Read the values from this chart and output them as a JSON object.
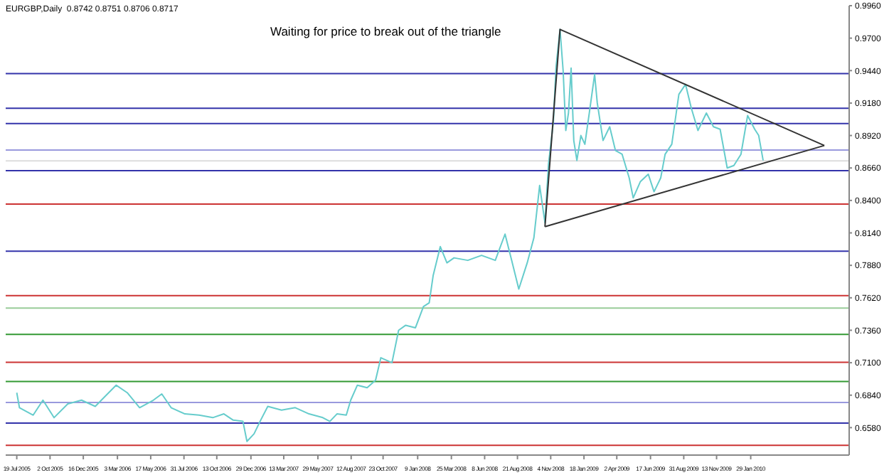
{
  "chart_data": {
    "type": "line",
    "title": "EURGBP,Daily  0.8742 0.8751 0.8706 0.8717",
    "annotations": [
      "Waiting for price to break out of the triangle"
    ],
    "series": [
      {
        "color": "#66cccc",
        "x": [
          "2005-07-19",
          "2005-07-25",
          "2005-08-25",
          "2005-09-16",
          "2005-10-11",
          "2005-11-11",
          "2005-12-12",
          "2006-01-12",
          "2006-02-03",
          "2006-02-28",
          "2006-03-25",
          "2006-04-22",
          "2006-05-23",
          "2006-06-11",
          "2006-07-02",
          "2006-08-02",
          "2006-09-03",
          "2006-10-04",
          "2006-10-29",
          "2006-11-19",
          "2006-12-11",
          "2006-12-20",
          "2007-01-05",
          "2007-01-20",
          "2007-02-05",
          "2007-03-08",
          "2007-04-08",
          "2007-05-09",
          "2007-06-09",
          "2007-06-25",
          "2007-07-11",
          "2007-08-01",
          "2007-08-11",
          "2007-08-26",
          "2007-09-17",
          "2007-10-06",
          "2007-10-18",
          "2007-11-12",
          "2007-11-27",
          "2007-12-13",
          "2008-01-04",
          "2008-01-22",
          "2008-02-04",
          "2008-02-13",
          "2008-02-29",
          "2008-03-15",
          "2008-03-31",
          "2008-05-01",
          "2008-06-01",
          "2008-07-02",
          "2008-07-24",
          "2008-08-08",
          "2008-08-24",
          "2008-09-12",
          "2008-09-27",
          "2008-10-10",
          "2008-10-22",
          "2008-10-30",
          "2008-11-10",
          "2008-11-16",
          "2008-11-25",
          "2008-12-02",
          "2008-12-08",
          "2008-12-14",
          "2008-12-20",
          "2008-12-26",
          "2009-01-02",
          "2009-01-11",
          "2009-01-20",
          "2009-01-30",
          "2009-02-11",
          "2009-02-17",
          "2009-03-02",
          "2009-03-17",
          "2009-03-30",
          "2009-04-14",
          "2009-04-30",
          "2009-05-09",
          "2009-05-25",
          "2009-06-12",
          "2009-06-25",
          "2009-07-10",
          "2009-07-20",
          "2009-08-04",
          "2009-08-20",
          "2009-09-04",
          "2009-09-17",
          "2009-10-02",
          "2009-10-21",
          "2009-11-06",
          "2009-11-21",
          "2009-12-07",
          "2009-12-22",
          "2010-01-07",
          "2010-01-22",
          "2010-02-07",
          "2010-02-16",
          "2010-02-26"
        ],
        "values": [
          0.686,
          0.674,
          0.668,
          0.68,
          0.666,
          0.677,
          0.68,
          0.675,
          0.683,
          0.692,
          0.686,
          0.674,
          0.68,
          0.685,
          0.674,
          0.669,
          0.668,
          0.666,
          0.669,
          0.664,
          0.663,
          0.647,
          0.653,
          0.664,
          0.675,
          0.672,
          0.674,
          0.669,
          0.666,
          0.663,
          0.669,
          0.668,
          0.68,
          0.692,
          0.69,
          0.696,
          0.714,
          0.71,
          0.736,
          0.74,
          0.738,
          0.755,
          0.758,
          0.78,
          0.803,
          0.79,
          0.794,
          0.792,
          0.796,
          0.792,
          0.813,
          0.792,
          0.769,
          0.79,
          0.81,
          0.852,
          0.822,
          0.869,
          0.903,
          0.947,
          0.977,
          0.944,
          0.896,
          0.91,
          0.946,
          0.888,
          0.872,
          0.892,
          0.885,
          0.91,
          0.941,
          0.918,
          0.888,
          0.899,
          0.88,
          0.877,
          0.858,
          0.842,
          0.855,
          0.861,
          0.847,
          0.858,
          0.877,
          0.885,
          0.925,
          0.933,
          0.914,
          0.896,
          0.91,
          0.899,
          0.897,
          0.866,
          0.868,
          0.877,
          0.908,
          0.897,
          0.892,
          0.872
        ]
      },
      {
        "color": "#333333",
        "x": [
          "2008-10-22",
          "2008-11-25",
          "2010-07-14"
        ],
        "values": [
          0.819,
          0.977,
          0.884
        ]
      },
      {
        "color": "#333333",
        "x": [
          "2008-10-22",
          "2010-07-14"
        ],
        "values": [
          0.819,
          0.884
        ]
      }
    ],
    "ref_lines": [
      {
        "axis": "y",
        "value": 0.9416,
        "color": "#3333aa"
      },
      {
        "axis": "y",
        "value": 0.9138,
        "color": "#3333aa"
      },
      {
        "axis": "y",
        "value": 0.9016,
        "color": "#3333aa"
      },
      {
        "axis": "y",
        "value": 0.8804,
        "color": "#9999dd"
      },
      {
        "axis": "y",
        "value": 0.8717,
        "color": "#dddddd"
      },
      {
        "axis": "y",
        "value": 0.8638,
        "color": "#3333aa"
      },
      {
        "axis": "y",
        "value": 0.8371,
        "color": "#cc3333"
      },
      {
        "axis": "y",
        "value": 0.7993,
        "color": "#3333aa"
      },
      {
        "axis": "y",
        "value": 0.7638,
        "color": "#cc3333"
      },
      {
        "axis": "y",
        "value": 0.7538,
        "color": "#99cc99"
      },
      {
        "axis": "y",
        "value": 0.7327,
        "color": "#339933"
      },
      {
        "axis": "y",
        "value": 0.7104,
        "color": "#cc3333"
      },
      {
        "axis": "y",
        "value": 0.6949,
        "color": "#339933"
      },
      {
        "axis": "y",
        "value": 0.6782,
        "color": "#9999dd"
      },
      {
        "axis": "y",
        "value": 0.6616,
        "color": "#3333aa"
      },
      {
        "axis": "y",
        "value": 0.6438,
        "color": "#cc3333"
      }
    ],
    "xlim": [
      "2005-06-24",
      "2010-09-08"
    ],
    "xticks": [
      {
        "value": "2005-07-19",
        "label": "19 Jul 2005"
      },
      {
        "value": "2005-10-02",
        "label": "2 Oct 2005"
      },
      {
        "value": "2005-12-16",
        "label": "16 Dec 2005"
      },
      {
        "value": "2006-03-03",
        "label": "3 Mar 2006"
      },
      {
        "value": "2006-05-17",
        "label": "17 May 2006"
      },
      {
        "value": "2006-07-31",
        "label": "31 Jul 2006"
      },
      {
        "value": "2006-10-13",
        "label": "13 Oct 2006"
      },
      {
        "value": "2006-12-29",
        "label": "29 Dec 2006"
      },
      {
        "value": "2007-03-13",
        "label": "13 Mar 2007"
      },
      {
        "value": "2007-05-29",
        "label": "29 May 2007"
      },
      {
        "value": "2007-08-12",
        "label": "12 Aug 2007"
      },
      {
        "value": "2007-10-23",
        "label": "23 Oct 2007"
      },
      {
        "value": "2008-01-09",
        "label": "9 Jan 2008"
      },
      {
        "value": "2008-03-25",
        "label": "25 Mar 2008"
      },
      {
        "value": "2008-06-08",
        "label": "8 Jun 2008"
      },
      {
        "value": "2008-08-21",
        "label": "21 Aug 2008"
      },
      {
        "value": "2008-11-04",
        "label": "4 Nov 2008"
      },
      {
        "value": "2009-01-18",
        "label": "18 Jan 2009"
      },
      {
        "value": "2009-04-02",
        "label": "2 Apr 2009"
      },
      {
        "value": "2009-06-17",
        "label": "17 Jun 2009"
      },
      {
        "value": "2009-08-31",
        "label": "31 Aug 2009"
      },
      {
        "value": "2009-11-13",
        "label": "13 Nov 2009"
      },
      {
        "value": "2010-01-29",
        "label": "29 Jan 2010"
      }
    ],
    "ylim": [
      0.636,
      0.996
    ],
    "yticks": [
      {
        "value": 0.996,
        "label": "0.9960"
      },
      {
        "value": 0.97,
        "label": "0.9700"
      },
      {
        "value": 0.944,
        "label": "0.9440"
      },
      {
        "value": 0.918,
        "label": "0.9180"
      },
      {
        "value": 0.892,
        "label": "0.8920"
      },
      {
        "value": 0.866,
        "label": "0.8660"
      },
      {
        "value": 0.84,
        "label": "0.8400"
      },
      {
        "value": 0.814,
        "label": "0.8140"
      },
      {
        "value": 0.788,
        "label": "0.7880"
      },
      {
        "value": 0.762,
        "label": "0.7620"
      },
      {
        "value": 0.736,
        "label": "0.7360"
      },
      {
        "value": 0.71,
        "label": "0.7100"
      },
      {
        "value": 0.684,
        "label": "0.6840"
      },
      {
        "value": 0.658,
        "label": "0.6580"
      }
    ],
    "grid": false,
    "marker": "none",
    "line_style": "solid"
  }
}
